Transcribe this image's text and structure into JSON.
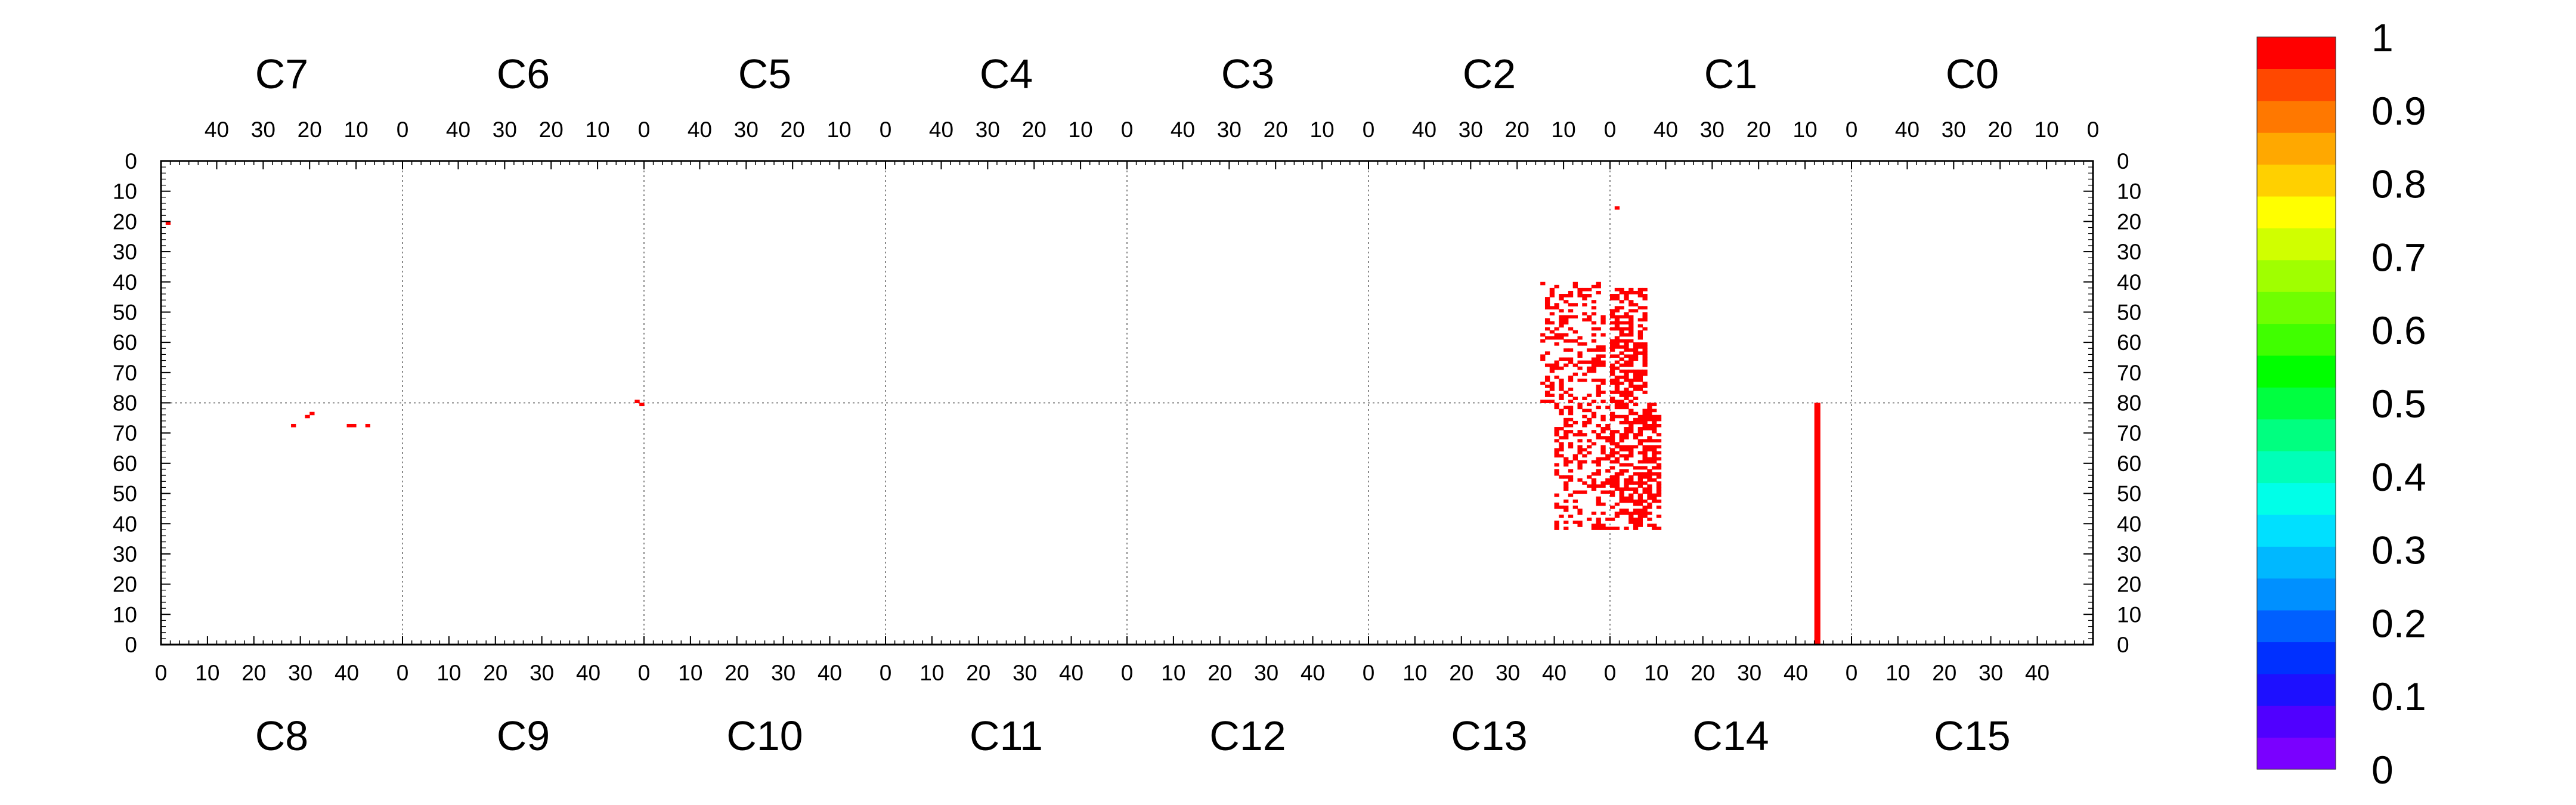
{
  "chart_data": {
    "type": "heatmap",
    "title": "",
    "grid": true,
    "legend": "right",
    "zlim": [
      0,
      1
    ],
    "top_chips": [
      "C7",
      "C6",
      "C5",
      "C4",
      "C3",
      "C2",
      "C1",
      "C0"
    ],
    "bottom_chips": [
      "C8",
      "C9",
      "C10",
      "C11",
      "C12",
      "C13",
      "C14",
      "C15"
    ],
    "x_tick_labels_top": [
      "40",
      "30",
      "20",
      "10",
      "0"
    ],
    "x_tick_labels_bottom": [
      "0",
      "10",
      "20",
      "30",
      "40"
    ],
    "y_tick_labels_top_half": [
      "0",
      "10",
      "20",
      "30",
      "40",
      "50",
      "60",
      "70",
      "80"
    ],
    "y_tick_labels_bottom_half": [
      "70",
      "60",
      "50",
      "40",
      "30",
      "20",
      "10",
      "0"
    ],
    "chip_columns": 52,
    "chip_rows": 80,
    "colorbar_ticks": [
      "0",
      "0.1",
      "0.2",
      "0.3",
      "0.4",
      "0.5",
      "0.6",
      "0.7",
      "0.8",
      "0.9",
      "1"
    ],
    "colorbar_colors": [
      "#7a00ff",
      "#5000ff",
      "#1d10ff",
      "#0030ff",
      "#0060ff",
      "#0090ff",
      "#00b8ff",
      "#00e0ff",
      "#00ffe8",
      "#00ffb8",
      "#00ff80",
      "#00ff40",
      "#00ff00",
      "#40ff00",
      "#70ff00",
      "#a0ff00",
      "#d0ff00",
      "#ffff00",
      "#ffd000",
      "#ffa800",
      "#ff7800",
      "#ff4800",
      "#ff0000"
    ],
    "points": [
      {
        "chip": "C7",
        "col": 50,
        "row": 20,
        "value": 1
      },
      {
        "chip": "C8",
        "col": 28,
        "row": 72,
        "value": 1
      },
      {
        "chip": "C8",
        "col": 31,
        "row": 75,
        "value": 1
      },
      {
        "chip": "C8",
        "col": 32,
        "row": 76,
        "value": 1
      },
      {
        "chip": "C8",
        "col": 40,
        "row": 72,
        "value": 1
      },
      {
        "chip": "C8",
        "col": 41,
        "row": 72,
        "value": 1
      },
      {
        "chip": "C8",
        "col": 44,
        "row": 72,
        "value": 1
      },
      {
        "chip": "C9",
        "col": 51,
        "row": 79,
        "value": 1
      },
      {
        "chip": "C6",
        "col": 1,
        "row": 79,
        "value": 1
      },
      {
        "chip": "C1",
        "col": 50,
        "row": 15,
        "value": 1
      },
      {
        "chip": "C14",
        "col": 44,
        "row_start": 0,
        "row_end": 80,
        "value": 1
      }
    ],
    "clusters": [
      {
        "chip": "C2",
        "col_min": 1,
        "col_max": 14,
        "row_min": 40,
        "row_max": 80,
        "density": 0.32,
        "value": 1
      },
      {
        "chip": "C1",
        "col_min": 44,
        "col_max": 51,
        "row_min": 42,
        "row_max": 80,
        "density": 0.55,
        "value": 1
      },
      {
        "chip": "C13",
        "col_min": 40,
        "col_max": 51,
        "row_min": 38,
        "row_max": 80,
        "density": 0.32,
        "value": 1
      },
      {
        "chip": "C14",
        "col_min": 0,
        "col_max": 10,
        "row_min": 38,
        "row_max": 80,
        "density": 0.55,
        "value": 1
      }
    ]
  }
}
